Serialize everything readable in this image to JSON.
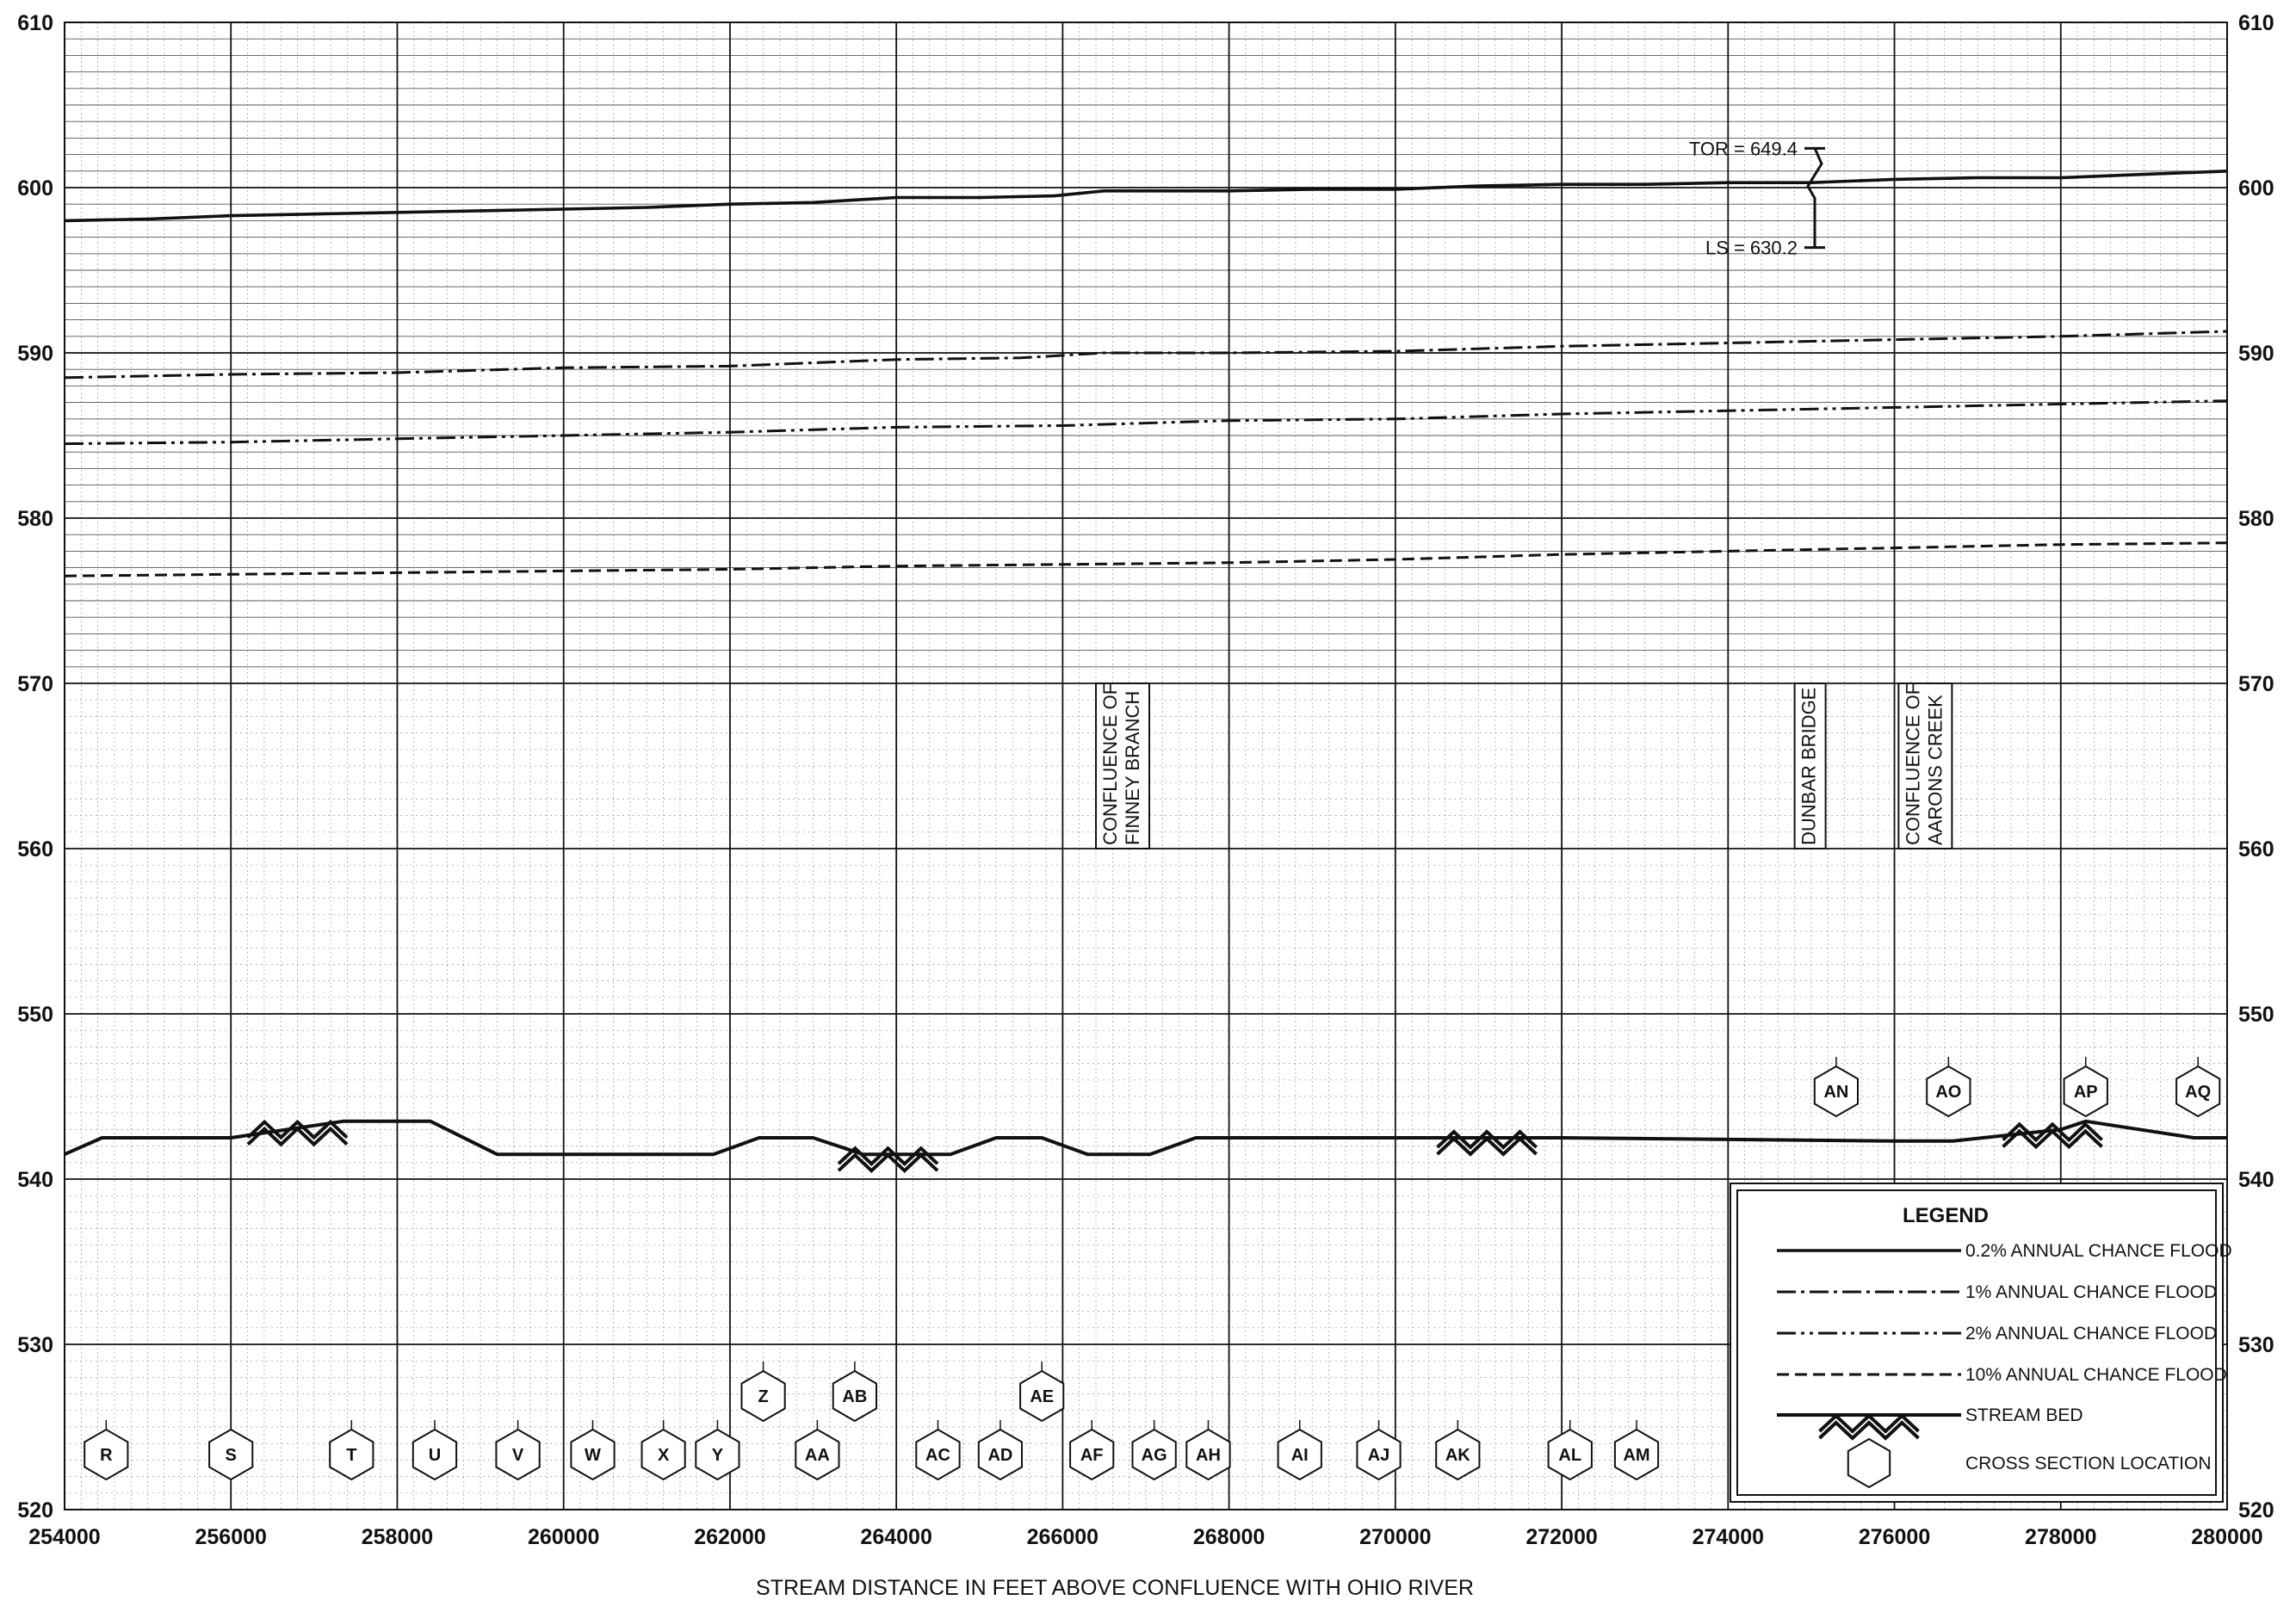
{
  "chart_data": {
    "type": "line",
    "title": "",
    "xlabel": "STREAM DISTANCE IN FEET ABOVE CONFLUENCE WITH OHIO RIVER",
    "ylabel": "",
    "xlim": [
      254000,
      280000
    ],
    "ylim": [
      520,
      610
    ],
    "x_ticks": [
      "254000",
      "256000",
      "258000",
      "260000",
      "262000",
      "264000",
      "266000",
      "268000",
      "270000",
      "272000",
      "274000",
      "276000",
      "278000",
      "280000"
    ],
    "y_ticks": [
      "520",
      "530",
      "540",
      "550",
      "560",
      "570",
      "580",
      "590",
      "600",
      "610"
    ],
    "grid": true,
    "legend_position": "bottom-right",
    "legend": {
      "title": "LEGEND",
      "items": [
        {
          "label": "0.2% ANNUAL CHANCE FLOOD",
          "style": "solid"
        },
        {
          "label": "1% ANNUAL CHANCE FLOOD",
          "style": "dashdot"
        },
        {
          "label": "2% ANNUAL CHANCE FLOOD",
          "style": "dashdot2"
        },
        {
          "label": "10% ANNUAL CHANCE FLOOD",
          "style": "dashed"
        },
        {
          "label": "STREAM BED",
          "style": "bed"
        },
        {
          "label": "CROSS SECTION LOCATION",
          "style": "hexagon"
        }
      ]
    },
    "series": [
      {
        "name": "0.2% ANNUAL CHANCE FLOOD",
        "style": "solid",
        "x": [
          254000,
          255000,
          256000,
          257000,
          258000,
          259000,
          260000,
          261000,
          262000,
          263000,
          264000,
          265000,
          265900,
          266500,
          267000,
          268000,
          269000,
          270000,
          271000,
          272000,
          273000,
          274000,
          275000,
          276000,
          277000,
          278000,
          279000,
          280000
        ],
        "y": [
          598.0,
          598.1,
          598.3,
          598.4,
          598.5,
          598.6,
          598.7,
          598.8,
          599.0,
          599.1,
          599.4,
          599.4,
          599.5,
          599.8,
          599.8,
          599.8,
          599.9,
          599.9,
          600.1,
          600.2,
          600.2,
          600.3,
          600.3,
          600.5,
          600.6,
          600.6,
          600.8,
          601.0
        ]
      },
      {
        "name": "1% ANNUAL CHANCE FLOOD",
        "style": "dashdot",
        "x": [
          254000,
          256000,
          258000,
          260000,
          262000,
          264000,
          265500,
          266500,
          268000,
          270000,
          272000,
          274000,
          276000,
          278000,
          280000
        ],
        "y": [
          588.5,
          588.7,
          588.8,
          589.1,
          589.2,
          589.6,
          589.7,
          590.0,
          590.0,
          590.1,
          590.4,
          590.6,
          590.8,
          591.0,
          591.3
        ]
      },
      {
        "name": "2% ANNUAL CHANCE FLOOD",
        "style": "dashdot2",
        "x": [
          254000,
          256000,
          258000,
          260000,
          262000,
          264000,
          266000,
          268000,
          270000,
          272000,
          274000,
          276000,
          278000,
          280000
        ],
        "y": [
          584.5,
          584.6,
          584.8,
          585.0,
          585.2,
          585.5,
          585.6,
          585.9,
          586.0,
          586.3,
          586.5,
          586.7,
          586.9,
          587.1
        ]
      },
      {
        "name": "10% ANNUAL CHANCE FLOOD",
        "style": "dashed",
        "x": [
          254000,
          256000,
          258000,
          260000,
          262000,
          264000,
          266000,
          268000,
          270000,
          272000,
          274000,
          276000,
          278000,
          280000
        ],
        "y": [
          576.5,
          576.6,
          576.7,
          576.8,
          576.9,
          577.1,
          577.2,
          577.3,
          577.5,
          577.8,
          578.0,
          578.2,
          578.4,
          578.5
        ]
      },
      {
        "name": "STREAM BED",
        "style": "bed",
        "x": [
          254000,
          254450,
          256000,
          257350,
          258400,
          259200,
          260000,
          261000,
          261800,
          262350,
          263000,
          263600,
          264000,
          264650,
          265200,
          265750,
          266300,
          267050,
          267600,
          268000,
          272000,
          276000,
          276700,
          278000,
          278300,
          279600,
          280000
        ],
        "y": [
          541.5,
          542.5,
          542.5,
          543.5,
          543.5,
          541.5,
          541.5,
          541.5,
          541.5,
          542.5,
          542.5,
          541.5,
          541.5,
          541.5,
          542.5,
          542.5,
          541.5,
          541.5,
          542.5,
          542.5,
          542.5,
          542.3,
          542.3,
          543.0,
          543.5,
          542.5,
          542.5
        ]
      }
    ],
    "bed_markers": [
      256800,
      263900,
      271100,
      277900
    ],
    "cross_sections": [
      {
        "label": "R",
        "x": 254500,
        "row": "low"
      },
      {
        "label": "S",
        "x": 256000,
        "row": "low"
      },
      {
        "label": "T",
        "x": 257450,
        "row": "low"
      },
      {
        "label": "U",
        "x": 258450,
        "row": "low"
      },
      {
        "label": "V",
        "x": 259450,
        "row": "low"
      },
      {
        "label": "W",
        "x": 260350,
        "row": "low"
      },
      {
        "label": "X",
        "x": 261200,
        "row": "low"
      },
      {
        "label": "Y",
        "x": 261850,
        "row": "low"
      },
      {
        "label": "Z",
        "x": 262400,
        "row": "mid"
      },
      {
        "label": "AA",
        "x": 263050,
        "row": "low"
      },
      {
        "label": "AB",
        "x": 263500,
        "row": "mid"
      },
      {
        "label": "AC",
        "x": 264500,
        "row": "low"
      },
      {
        "label": "AD",
        "x": 265250,
        "row": "low"
      },
      {
        "label": "AE",
        "x": 265750,
        "row": "mid"
      },
      {
        "label": "AF",
        "x": 266350,
        "row": "low"
      },
      {
        "label": "AG",
        "x": 267100,
        "row": "low"
      },
      {
        "label": "AH",
        "x": 267750,
        "row": "low"
      },
      {
        "label": "AI",
        "x": 268850,
        "row": "low"
      },
      {
        "label": "AJ",
        "x": 269800,
        "row": "low"
      },
      {
        "label": "AK",
        "x": 270750,
        "row": "low"
      },
      {
        "label": "AL",
        "x": 272100,
        "row": "low"
      },
      {
        "label": "AM",
        "x": 272900,
        "row": "low"
      },
      {
        "label": "AN",
        "x": 275300,
        "row": "high"
      },
      {
        "label": "AO",
        "x": 276650,
        "row": "high"
      },
      {
        "label": "AP",
        "x": 278300,
        "row": "high"
      },
      {
        "label": "AQ",
        "x": 279650,
        "row": "high"
      }
    ],
    "annotations": {
      "tor": "TOR = 649.4",
      "ls": "LS = 630.2",
      "finney": [
        "CONFLUENCE OF",
        "FINNEY BRANCH"
      ],
      "dunbar": "DUNBAR BRIDGE",
      "aarons": [
        "CONFLUENCE OF",
        "AARONS CREEK"
      ]
    }
  }
}
